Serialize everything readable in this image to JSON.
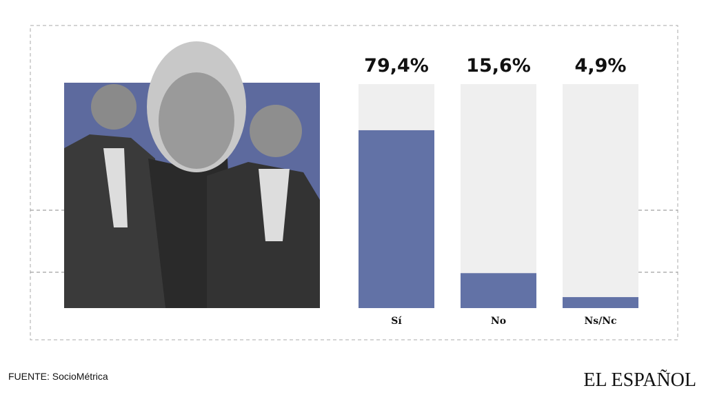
{
  "chart_data": {
    "type": "bar",
    "categories": [
      "Sí",
      "No",
      "Ns/Nc"
    ],
    "values": [
      79.4,
      15.6,
      4.9
    ],
    "value_labels": [
      "79,4%",
      "15,6%",
      "4,9%"
    ],
    "color": "#6272a6",
    "track_color": "#efefef",
    "ylim": [
      0,
      100
    ]
  },
  "footer": {
    "source": "FUENTE: SocioMétrica",
    "logo": "EL ESPAÑOL"
  }
}
